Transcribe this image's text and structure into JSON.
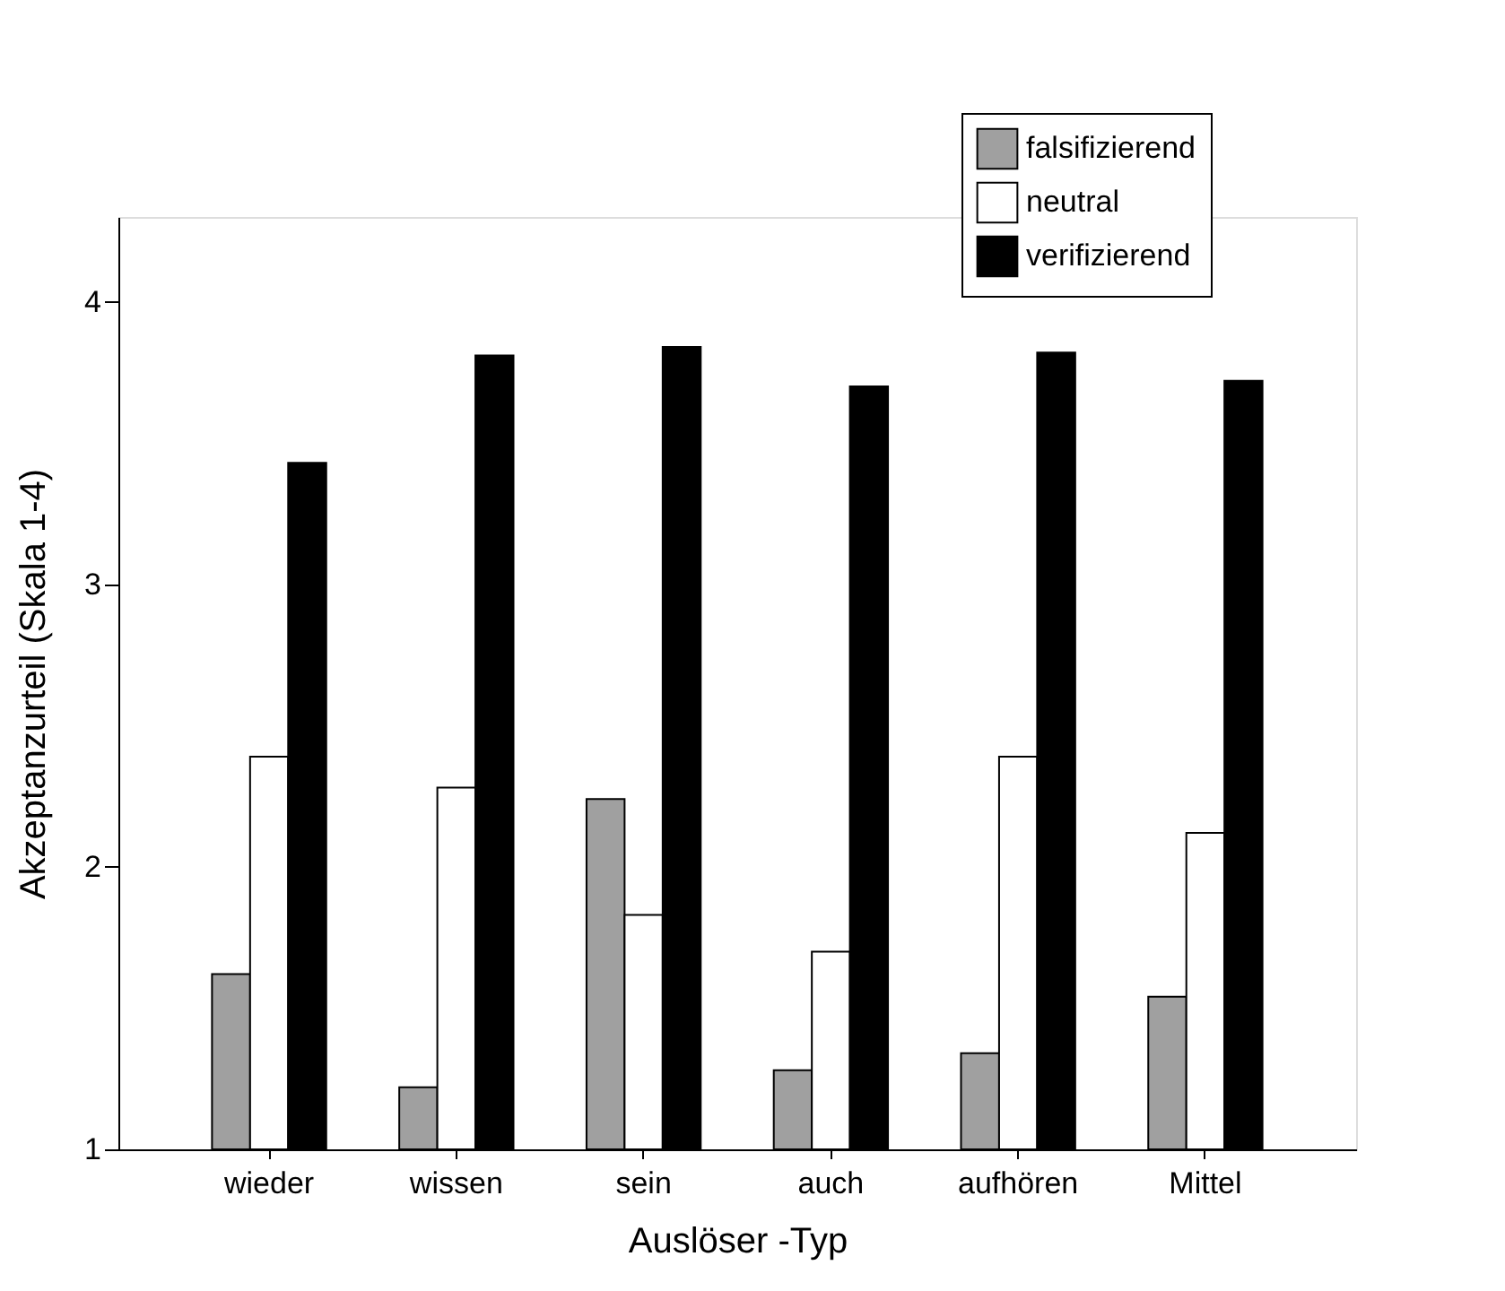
{
  "chart_data": {
    "type": "bar",
    "xlabel": "Auslöser -Typ",
    "ylabel": "Akzeptanzurteil (Skala 1-4)",
    "categories": [
      "wieder",
      "wissen",
      "sein",
      "auch",
      "aufhören",
      "Mittel"
    ],
    "series": [
      {
        "name": "falsifizierend",
        "color": "#a0a0a0",
        "values": [
          1.62,
          1.22,
          2.24,
          1.28,
          1.34,
          1.54
        ]
      },
      {
        "name": "neutral",
        "color": "#ffffff",
        "values": [
          2.39,
          2.28,
          1.83,
          1.7,
          2.39,
          2.12
        ]
      },
      {
        "name": "verifizierend",
        "color": "#000000",
        "values": [
          3.43,
          3.81,
          3.84,
          3.7,
          3.82,
          3.72
        ]
      }
    ],
    "ylim": [
      1,
      4.3
    ],
    "yticks": [
      1,
      2,
      3,
      4
    ],
    "grid": false,
    "legend": "top right"
  }
}
